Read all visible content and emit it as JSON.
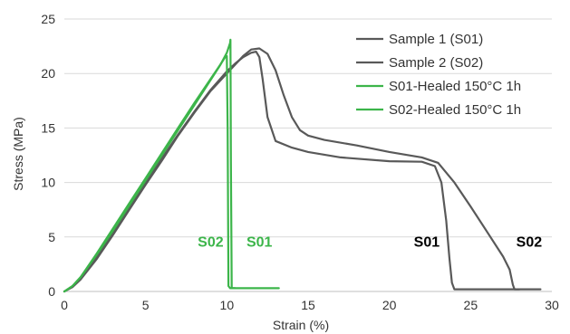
{
  "chart_data": {
    "type": "line",
    "title": "",
    "xlabel": "Strain (%)",
    "ylabel": "Stress (MPa)",
    "xlim": [
      0,
      30
    ],
    "ylim": [
      0,
      25
    ],
    "xticks": [
      "0",
      "5",
      "10",
      "15",
      "20",
      "25",
      "30"
    ],
    "yticks": [
      "0",
      "5",
      "10",
      "15",
      "20",
      "25"
    ],
    "grid": "horizontal",
    "legend_position": "top-right",
    "series": [
      {
        "name": "Sample 1 (S01)",
        "color": "#595959",
        "x": [
          0,
          0.5,
          1,
          2,
          3,
          4,
          5,
          6,
          7,
          8,
          9,
          10,
          10.5,
          11,
          11.5,
          11.8,
          12,
          12.2,
          12.5,
          13,
          14,
          15,
          17,
          20,
          22,
          22.8,
          23.2,
          23.5,
          23.7,
          23.85,
          24,
          26,
          28
        ],
        "y": [
          0,
          0.5,
          1.2,
          3.2,
          5.4,
          7.7,
          10.0,
          12.2,
          14.4,
          16.5,
          18.5,
          20.2,
          20.9,
          21.5,
          21.9,
          22.0,
          21.5,
          19.5,
          16.0,
          13.8,
          13.2,
          12.8,
          12.3,
          11.95,
          11.9,
          11.5,
          10.0,
          6.5,
          3.0,
          0.8,
          0.2,
          0.2,
          0.2
        ]
      },
      {
        "name": "Sample 2 (S02)",
        "color": "#595959",
        "x": [
          0,
          0.5,
          1,
          2,
          3,
          4,
          5,
          6,
          7,
          8,
          9,
          10,
          10.5,
          11,
          11.5,
          12,
          12.5,
          13,
          13.5,
          14,
          14.5,
          15,
          16,
          18,
          20,
          22,
          23,
          24,
          25,
          26,
          27,
          27.4,
          27.6,
          27.7,
          28,
          29.3
        ],
        "y": [
          0,
          0.4,
          1.1,
          3.0,
          5.2,
          7.5,
          9.8,
          12.0,
          14.3,
          16.4,
          18.4,
          20.0,
          20.8,
          21.6,
          22.2,
          22.3,
          21.8,
          20.3,
          18.0,
          16.0,
          14.8,
          14.3,
          13.9,
          13.4,
          12.8,
          12.3,
          11.8,
          10.0,
          7.8,
          5.5,
          3.2,
          2.0,
          0.6,
          0.2,
          0.2,
          0.2
        ]
      },
      {
        "name": "S01-Healed 150°C 1h",
        "color": "#3cb54a",
        "x": [
          0,
          0.5,
          1,
          2,
          3,
          4,
          5,
          6,
          7,
          8,
          9,
          9.6,
          10.0,
          10.2,
          10.22,
          10.25,
          10.3,
          10.6,
          13.2
        ],
        "y": [
          0,
          0.5,
          1.3,
          3.4,
          5.6,
          7.9,
          10.2,
          12.5,
          14.8,
          17.1,
          19.4,
          20.8,
          21.9,
          22.8,
          23.1,
          12.0,
          0.3,
          0.3,
          0.3
        ]
      },
      {
        "name": "S02-Healed 150°C 1h",
        "color": "#3cb54a",
        "x": [
          0,
          0.5,
          1,
          2,
          3,
          4,
          5,
          6,
          7,
          8,
          9,
          9.5,
          9.9,
          10.0,
          10.05,
          10.1,
          10.2,
          10.5
        ],
        "y": [
          0,
          0.5,
          1.3,
          3.5,
          5.8,
          8.1,
          10.4,
          12.7,
          15.0,
          17.3,
          19.5,
          20.6,
          21.5,
          21.6,
          15.0,
          0.5,
          0.3,
          0.3
        ]
      }
    ],
    "annotations": [
      {
        "text": "S02",
        "x": 9.0,
        "y": 4.1,
        "color": "#3cb54a"
      },
      {
        "text": "S01",
        "x": 12.0,
        "y": 4.1,
        "color": "#3cb54a"
      },
      {
        "text": "S01",
        "x": 22.3,
        "y": 4.1,
        "color": "#000000"
      },
      {
        "text": "S02",
        "x": 28.6,
        "y": 4.1,
        "color": "#000000"
      }
    ]
  }
}
